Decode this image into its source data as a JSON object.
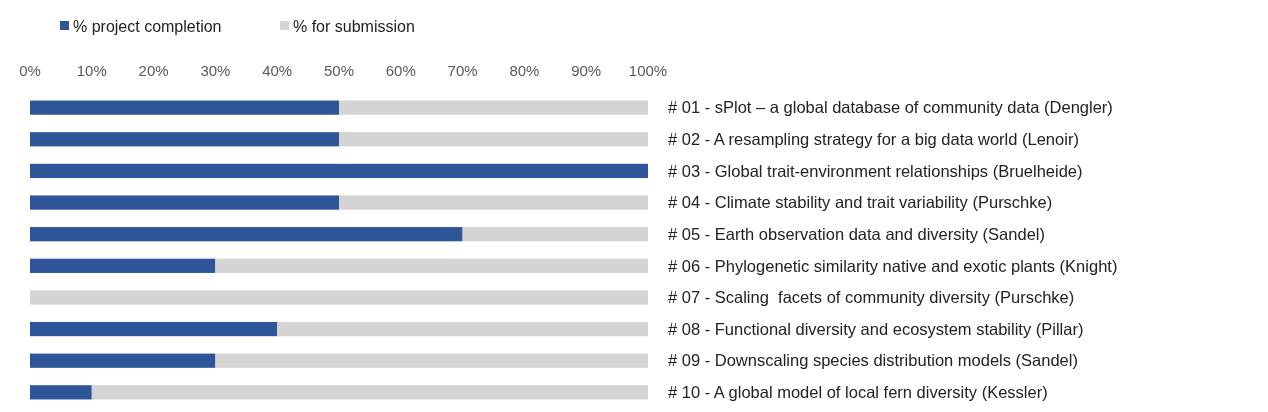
{
  "chart_data": {
    "type": "bar",
    "orientation": "horizontal",
    "stacked": true,
    "legend": "top left",
    "grid": false,
    "categories": [
      "# 01 - sPlot – a global database of community data (Dengler)",
      "# 02 - A resampling strategy for a big data world (Lenoir)",
      "# 03 - Global trait-environment relationships (Bruelheide)",
      "# 04 - Climate stability and trait variability (Purschke)",
      "# 05 - Earth observation data and diversity (Sandel)",
      "# 06 - Phylogenetic similarity native and exotic plants (Knight)",
      "# 07 - Scaling  facets of community diversity (Purschke)",
      "# 08 - Functional diversity and ecosystem stability (Pillar)",
      "# 09 - Downscaling species distribution models (Sandel)",
      "# 10 - A global model of local fern diversity (Kessler)"
    ],
    "series": [
      {
        "name": "% project completion",
        "color": "#2e5597",
        "values": [
          50,
          50,
          100,
          50,
          70,
          30,
          0,
          40,
          30,
          10
        ]
      },
      {
        "name": "% for submission",
        "color": "#d4d4d4",
        "values": [
          50,
          50,
          0,
          50,
          30,
          70,
          100,
          60,
          70,
          90
        ]
      }
    ],
    "xlim": [
      0,
      100
    ],
    "xticks": [
      {
        "value": 0,
        "label": "0%"
      },
      {
        "value": 10,
        "label": "10%"
      },
      {
        "value": 20,
        "label": "20%"
      },
      {
        "value": 30,
        "label": "30%"
      },
      {
        "value": 40,
        "label": "40%"
      },
      {
        "value": 50,
        "label": "50%"
      },
      {
        "value": 60,
        "label": "60%"
      },
      {
        "value": 70,
        "label": "70%"
      },
      {
        "value": 80,
        "label": "80%"
      },
      {
        "value": 90,
        "label": "90%"
      },
      {
        "value": 100,
        "label": "100%"
      }
    ]
  }
}
